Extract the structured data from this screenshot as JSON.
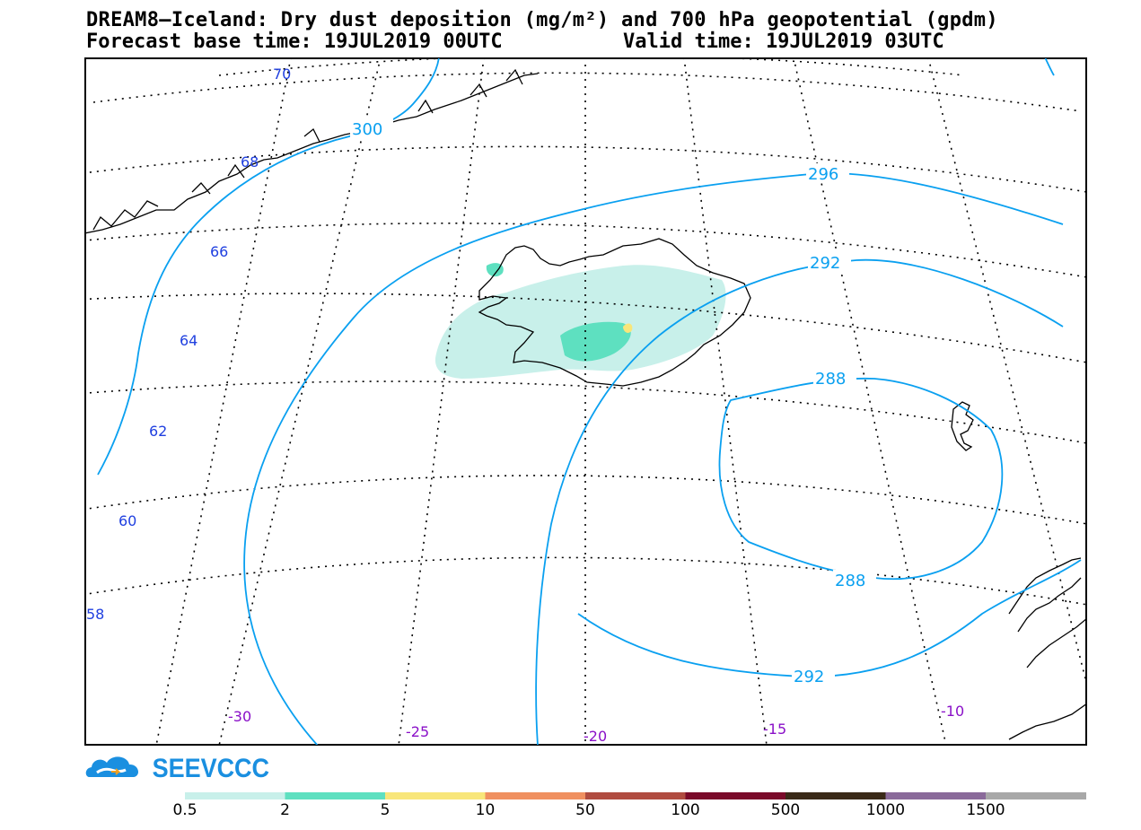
{
  "header": {
    "title_line1": "DREAM8–Iceland: Dry dust deposition (mg/m²) and 700 hPa geopotential (gpdm)",
    "forecast_base": "Forecast base time: 19JUL2019 00UTC",
    "valid_time": "Valid time: 19JUL2019 03UTC"
  },
  "map": {
    "latitude_labels": [
      "70",
      "68",
      "66",
      "64",
      "62",
      "60",
      "58"
    ],
    "longitude_labels": [
      "-30",
      "-25",
      "-20",
      "-15",
      "-10"
    ],
    "contour_labels": [
      "300",
      "296",
      "292",
      "288",
      "288",
      "292"
    ],
    "colors": {
      "contour": "#0aa0f0",
      "graticule": "#000000",
      "coastline": "#000000",
      "lat_label": "#2040e0",
      "lon_label": "#8a10c8"
    }
  },
  "logo": {
    "text": "SEEVCCC",
    "color": "#1a8fe0"
  },
  "legend": {
    "colors": [
      "#c8f0ea",
      "#5ee0c0",
      "#f8e67a",
      "#f09060",
      "#b04c40",
      "#7a0a2a",
      "#3a2a18",
      "#8a6a9a",
      "#a8a8a8"
    ],
    "labels": [
      "0.5",
      "2",
      "5",
      "10",
      "50",
      "100",
      "500",
      "1000",
      "1500"
    ]
  }
}
